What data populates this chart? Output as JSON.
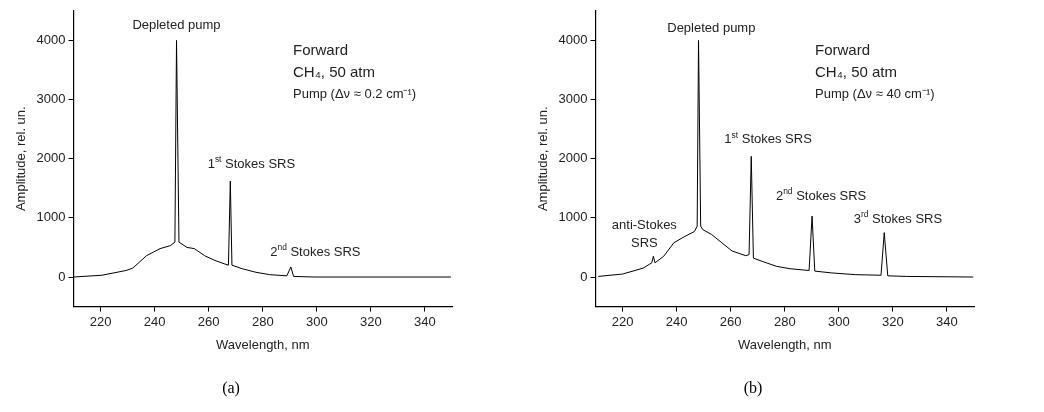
{
  "chart_data": [
    {
      "type": "line",
      "title": "(a)",
      "xlabel": "Wavelength, nm",
      "ylabel": "Amplitude, rel. un.",
      "xlim": [
        210,
        350
      ],
      "xticks": [
        220,
        240,
        260,
        280,
        300,
        320,
        340
      ],
      "ylim": [
        -500,
        4500
      ],
      "yticks": [
        0,
        1000,
        2000,
        3000,
        4000
      ],
      "grid": false,
      "legend": false,
      "line_style": "solid",
      "series": [
        {
          "color": "#000000",
          "x": [
            210,
            220.5,
            229.4,
            231.9,
            237,
            239.5,
            242,
            245.8,
            247.5,
            248.1,
            249,
            252,
            254.7,
            258.5,
            262.3,
            266,
            267.3,
            268,
            268.6,
            272.4,
            277.5,
            282.5,
            288.9,
            290.4,
            291.4,
            299,
            320,
            349.6
          ],
          "values": [
            0,
            30,
            110,
            150,
            360,
            420,
            480,
            530,
            590,
            4000,
            590,
            500,
            480,
            360,
            280,
            220,
            200,
            1620,
            200,
            140,
            80,
            40,
            20,
            170,
            10,
            0,
            0,
            0
          ]
        }
      ],
      "annotations": [
        "Forward",
        "CH₄, 50 atm",
        "Pump (Δν ≈ 0.2 cm⁻¹)",
        "Depleted pump",
        "1$^{st}$ Stokes SRS",
        "2$^{nd}$ Stokes SRS"
      ]
    },
    {
      "type": "line",
      "title": "(b)",
      "xlabel": "Wavelength, nm",
      "ylabel": "Amplitude, rel. un.",
      "xlim": [
        210,
        350
      ],
      "xticks": [
        220,
        240,
        260,
        280,
        300,
        320,
        340
      ],
      "ylim": [
        -500,
        4500
      ],
      "yticks": [
        0,
        1000,
        2000,
        3000,
        4000
      ],
      "grid": false,
      "legend": false,
      "line_style": "solid",
      "series": [
        {
          "color": "#000000",
          "x": [
            211,
            220,
            227.6,
            230.8,
            231.4,
            232,
            235.2,
            239,
            242.8,
            246.6,
            247.6,
            248.1,
            248.9,
            249.7,
            252.9,
            256.7,
            260.5,
            265.6,
            266.8,
            267.6,
            268.4,
            271.9,
            277,
            282,
            289,
            290.1,
            291.1,
            297.2,
            306.1,
            315.6,
            316.8,
            318.1,
            325.1,
            349.7
          ],
          "values": [
            10,
            50,
            150,
            240,
            350,
            240,
            350,
            580,
            680,
            770,
            860,
            4000,
            860,
            800,
            720,
            580,
            440,
            360,
            380,
            2040,
            320,
            260,
            180,
            140,
            110,
            1030,
            100,
            70,
            40,
            30,
            750,
            20,
            10,
            0
          ]
        }
      ],
      "annotations": [
        "Forward",
        "CH₄, 50 atm",
        "Pump (Δν ≈ 40 cm⁻¹)",
        "Depleted pump",
        "1$^{st}$ Stokes SRS",
        "2$^{nd}$ Stokes SRS",
        "3$^{rd}$ Stokes SRS",
        "anti-Stokes\nSRS"
      ]
    }
  ]
}
